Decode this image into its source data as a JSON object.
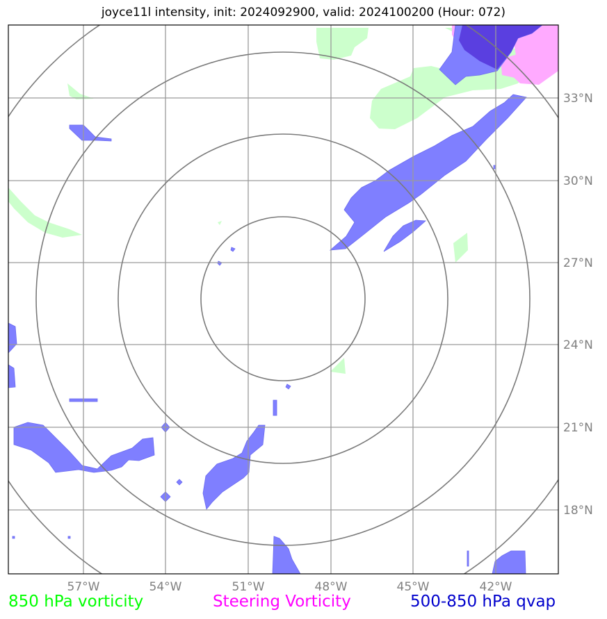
{
  "title": "joyce11l intensity, init: 2024092900, valid: 2024100200 (Hour: 072)",
  "map": {
    "lon_ticks": [
      "57°W",
      "54°W",
      "51°W",
      "48°W",
      "45°W",
      "42°W"
    ],
    "lat_ticks": [
      "33°N",
      "30°N",
      "27°N",
      "24°N",
      "21°N",
      "18°N"
    ],
    "range_rings_count": 4,
    "colors": {
      "vorticity_850": "#ccffcc",
      "steering_vorticity": "#ffaaff",
      "qvap": "#7f7fff",
      "qvap_dark": "#5a3fe0",
      "grid": "#9a9a9a",
      "rings": "#7a7a7a"
    }
  },
  "legend": [
    {
      "label": "850 hPa vorticity",
      "color": "#00ff00"
    },
    {
      "label": "Steering Vorticity",
      "color": "#ff00ff"
    },
    {
      "label": "500-850 hPa qvap",
      "color": "#0000cc"
    }
  ]
}
